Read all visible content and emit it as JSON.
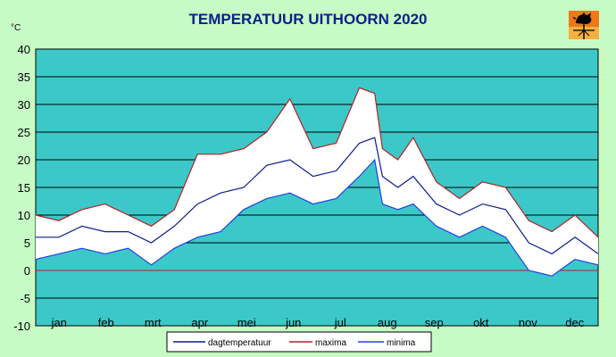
{
  "chart_data": {
    "type": "line",
    "title": "TEMPERATUUR UITHOORN 2020",
    "ylabel": "°C",
    "ylim": [
      -10,
      40
    ],
    "yticks": [
      "40",
      "35",
      "30",
      "25",
      "20",
      "15",
      "10",
      "5",
      "0",
      "-5",
      "-10"
    ],
    "categories": [
      "jan",
      "feb",
      "mrt",
      "apr",
      "mei",
      "jun",
      "jul",
      "aug",
      "sep",
      "okt",
      "nov",
      "dec"
    ],
    "grid": true,
    "legend": "bottom",
    "colors": {
      "plot_bg": "#3cc8c8",
      "band_fill": "#ffffff",
      "page_bg": "#c7fbc5",
      "dag": "#0a1e8c",
      "maxima": "#b22222",
      "minima": "#1f3fe6",
      "zero_line": "#b22222"
    },
    "series": [
      {
        "name": "dagtemperatuur",
        "color": "#0a1e8c",
        "x": [
          1,
          16,
          31,
          46,
          61,
          76,
          91,
          106,
          121,
          136,
          151,
          166,
          181,
          196,
          211,
          221,
          226,
          236,
          246,
          261,
          276,
          291,
          306,
          321,
          336,
          351,
          366
        ],
        "values": [
          6,
          6,
          8,
          7,
          7,
          5,
          8,
          12,
          14,
          15,
          19,
          20,
          17,
          18,
          23,
          24,
          17,
          15,
          17,
          12,
          10,
          12,
          11,
          5,
          3,
          6,
          3
        ]
      },
      {
        "name": "maxima",
        "color": "#b22222",
        "x": [
          1,
          16,
          31,
          46,
          61,
          76,
          91,
          106,
          121,
          136,
          151,
          166,
          181,
          196,
          211,
          221,
          226,
          236,
          246,
          261,
          276,
          291,
          306,
          321,
          336,
          351,
          366
        ],
        "values": [
          10,
          9,
          11,
          12,
          10,
          8,
          11,
          21,
          21,
          22,
          25,
          31,
          22,
          23,
          33,
          32,
          22,
          20,
          24,
          16,
          13,
          16,
          15,
          9,
          7,
          10,
          6
        ]
      },
      {
        "name": "minima",
        "color": "#1f3fe6",
        "x": [
          1,
          16,
          31,
          46,
          61,
          76,
          91,
          106,
          121,
          136,
          151,
          166,
          181,
          196,
          211,
          221,
          226,
          236,
          246,
          261,
          276,
          291,
          306,
          321,
          336,
          351,
          366
        ],
        "values": [
          2,
          3,
          4,
          3,
          4,
          1,
          4,
          6,
          7,
          11,
          13,
          14,
          12,
          13,
          17,
          20,
          12,
          11,
          12,
          8,
          6,
          8,
          6,
          0,
          -1,
          2,
          1
        ]
      }
    ]
  }
}
